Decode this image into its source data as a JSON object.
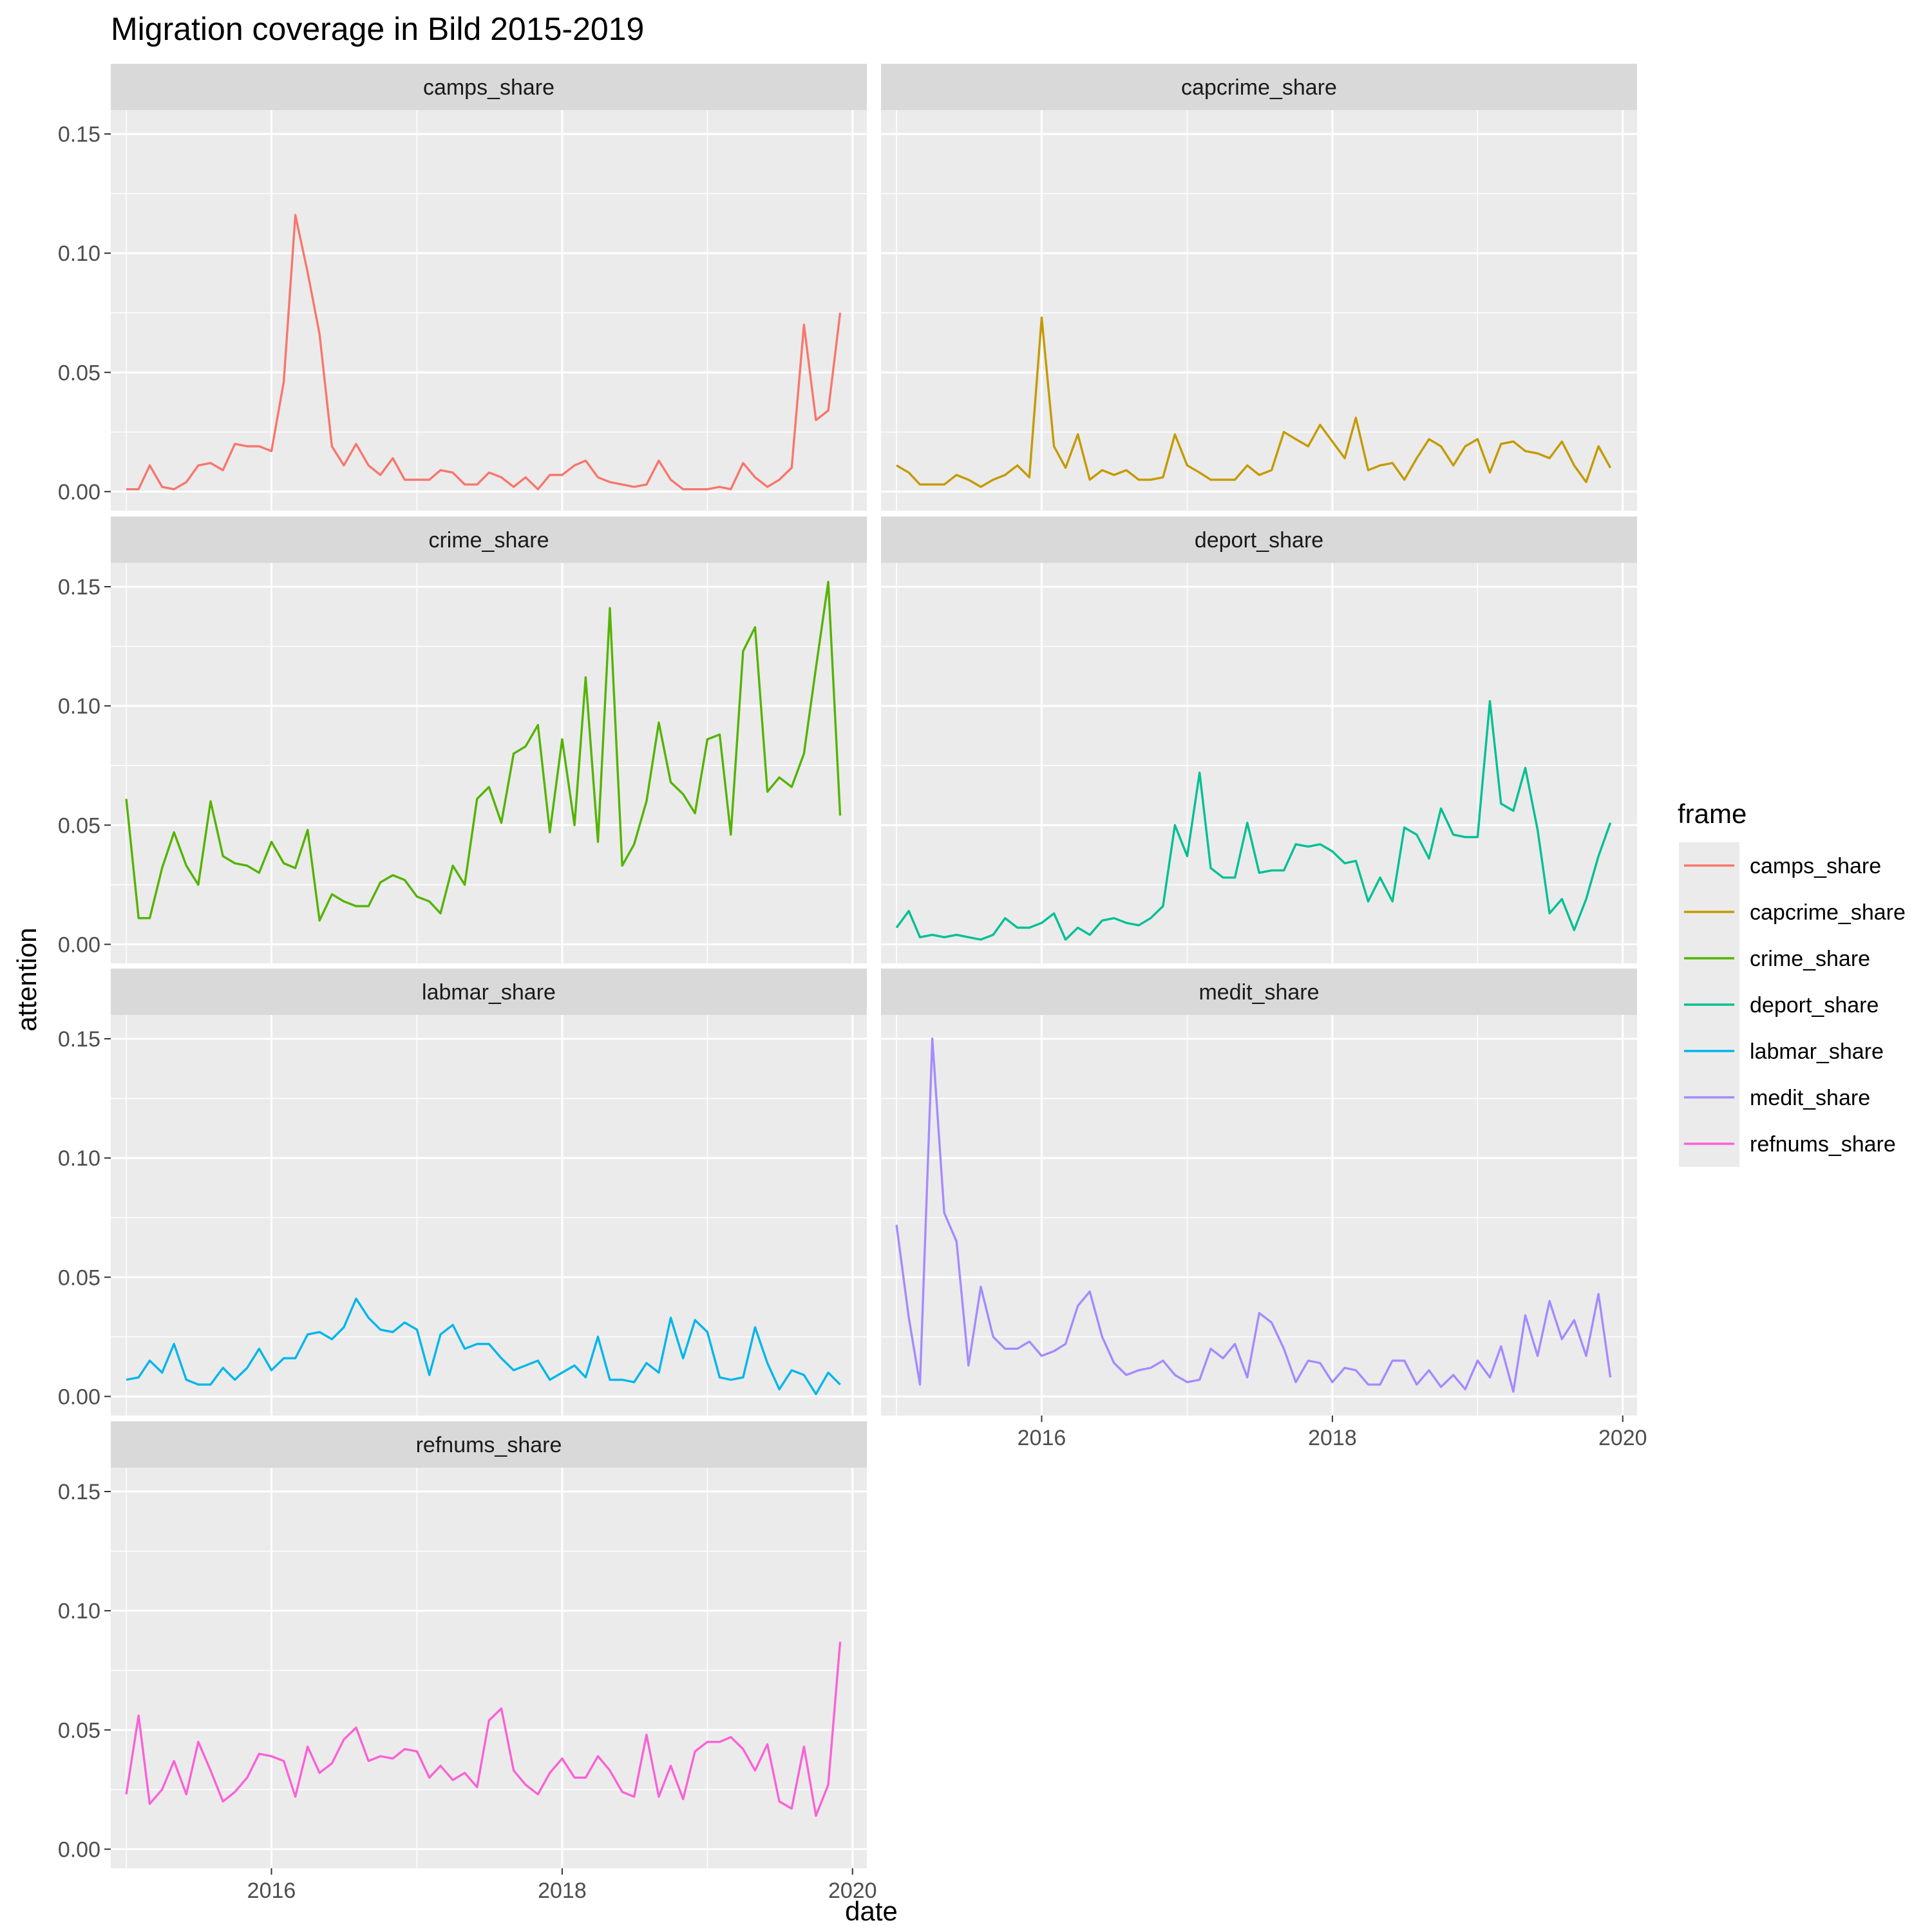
{
  "chart_data": {
    "type": "line",
    "title": "Migration coverage in Bild 2015-2019",
    "xlabel": "date",
    "ylabel": "attention",
    "legend_title": "frame",
    "legend_position": "right",
    "grid": true,
    "facet": "wrap by frame, 2 columns",
    "x_start": "2015-01",
    "x_step": "1 month",
    "xlim": [
      "2014-11-23",
      "2020-02-06"
    ],
    "x_ticks": [
      "2016",
      "2018",
      "2020"
    ],
    "ylim": [
      -0.008,
      0.16
    ],
    "y_ticks": [
      "0.00",
      "0.05",
      "0.10",
      "0.15"
    ],
    "series": [
      {
        "name": "camps_share",
        "color": "#F8766D",
        "values": [
          0.001,
          0.001,
          0.011,
          0.002,
          0.001,
          0.004,
          0.011,
          0.012,
          0.009,
          0.02,
          0.019,
          0.019,
          0.017,
          0.046,
          0.116,
          0.092,
          0.066,
          0.019,
          0.011,
          0.02,
          0.011,
          0.007,
          0.014,
          0.005,
          0.005,
          0.005,
          0.009,
          0.008,
          0.003,
          0.003,
          0.008,
          0.006,
          0.002,
          0.006,
          0.001,
          0.007,
          0.007,
          0.011,
          0.013,
          0.006,
          0.004,
          0.003,
          0.002,
          0.003,
          0.013,
          0.005,
          0.001,
          0.001,
          0.001,
          0.002,
          0.001,
          0.012,
          0.006,
          0.002,
          0.005,
          0.01,
          0.07,
          0.03,
          0.034,
          0.075
        ]
      },
      {
        "name": "capcrime_share",
        "color": "#C49A00",
        "values": [
          0.011,
          0.008,
          0.003,
          0.003,
          0.003,
          0.007,
          0.005,
          0.002,
          0.005,
          0.007,
          0.011,
          0.006,
          0.073,
          0.019,
          0.01,
          0.024,
          0.005,
          0.009,
          0.007,
          0.009,
          0.005,
          0.005,
          0.006,
          0.024,
          0.011,
          0.008,
          0.005,
          0.005,
          0.005,
          0.011,
          0.007,
          0.009,
          0.025,
          0.022,
          0.019,
          0.028,
          0.021,
          0.014,
          0.031,
          0.009,
          0.011,
          0.012,
          0.005,
          0.014,
          0.022,
          0.019,
          0.011,
          0.019,
          0.022,
          0.008,
          0.02,
          0.021,
          0.017,
          0.016,
          0.014,
          0.021,
          0.011,
          0.004,
          0.019,
          0.01
        ]
      },
      {
        "name": "crime_share",
        "color": "#53B400",
        "values": [
          0.061,
          0.011,
          0.011,
          0.032,
          0.047,
          0.033,
          0.025,
          0.06,
          0.037,
          0.034,
          0.033,
          0.03,
          0.043,
          0.034,
          0.032,
          0.048,
          0.01,
          0.021,
          0.018,
          0.016,
          0.016,
          0.026,
          0.029,
          0.027,
          0.02,
          0.018,
          0.013,
          0.033,
          0.025,
          0.061,
          0.066,
          0.051,
          0.08,
          0.083,
          0.092,
          0.047,
          0.086,
          0.05,
          0.112,
          0.043,
          0.141,
          0.033,
          0.042,
          0.06,
          0.093,
          0.068,
          0.063,
          0.055,
          0.086,
          0.088,
          0.046,
          0.123,
          0.133,
          0.064,
          0.07,
          0.066,
          0.08,
          0.116,
          0.152,
          0.054
        ]
      },
      {
        "name": "deport_share",
        "color": "#00C094",
        "values": [
          0.007,
          0.014,
          0.003,
          0.004,
          0.003,
          0.004,
          0.003,
          0.002,
          0.004,
          0.011,
          0.007,
          0.007,
          0.009,
          0.013,
          0.002,
          0.007,
          0.004,
          0.01,
          0.011,
          0.009,
          0.008,
          0.011,
          0.016,
          0.05,
          0.037,
          0.072,
          0.032,
          0.028,
          0.028,
          0.051,
          0.03,
          0.031,
          0.031,
          0.042,
          0.041,
          0.042,
          0.039,
          0.034,
          0.035,
          0.018,
          0.028,
          0.018,
          0.049,
          0.046,
          0.036,
          0.057,
          0.046,
          0.045,
          0.045,
          0.102,
          0.059,
          0.056,
          0.074,
          0.048,
          0.013,
          0.019,
          0.006,
          0.019,
          0.037,
          0.051
        ]
      },
      {
        "name": "labmar_share",
        "color": "#00B6EB",
        "values": [
          0.007,
          0.008,
          0.015,
          0.01,
          0.022,
          0.007,
          0.005,
          0.005,
          0.012,
          0.007,
          0.012,
          0.02,
          0.011,
          0.016,
          0.016,
          0.026,
          0.027,
          0.024,
          0.029,
          0.041,
          0.033,
          0.028,
          0.027,
          0.031,
          0.028,
          0.009,
          0.026,
          0.03,
          0.02,
          0.022,
          0.022,
          0.016,
          0.011,
          0.013,
          0.015,
          0.007,
          0.01,
          0.013,
          0.008,
          0.025,
          0.007,
          0.007,
          0.006,
          0.014,
          0.01,
          0.033,
          0.016,
          0.032,
          0.027,
          0.008,
          0.007,
          0.008,
          0.029,
          0.014,
          0.003,
          0.011,
          0.009,
          0.001,
          0.01,
          0.005
        ]
      },
      {
        "name": "medit_share",
        "color": "#A58AFF",
        "values": [
          0.072,
          0.033,
          0.005,
          0.15,
          0.077,
          0.065,
          0.013,
          0.046,
          0.025,
          0.02,
          0.02,
          0.023,
          0.017,
          0.019,
          0.022,
          0.038,
          0.044,
          0.025,
          0.014,
          0.009,
          0.011,
          0.012,
          0.015,
          0.009,
          0.006,
          0.007,
          0.02,
          0.016,
          0.022,
          0.008,
          0.035,
          0.031,
          0.02,
          0.006,
          0.015,
          0.014,
          0.006,
          0.012,
          0.011,
          0.005,
          0.005,
          0.015,
          0.015,
          0.005,
          0.011,
          0.004,
          0.009,
          0.003,
          0.015,
          0.008,
          0.021,
          0.002,
          0.034,
          0.017,
          0.04,
          0.024,
          0.032,
          0.017,
          0.043,
          0.008
        ]
      },
      {
        "name": "refnums_share",
        "color": "#FB61D7",
        "values": [
          0.023,
          0.056,
          0.019,
          0.025,
          0.037,
          0.023,
          0.045,
          0.033,
          0.02,
          0.024,
          0.03,
          0.04,
          0.039,
          0.037,
          0.022,
          0.043,
          0.032,
          0.036,
          0.046,
          0.051,
          0.037,
          0.039,
          0.038,
          0.042,
          0.041,
          0.03,
          0.035,
          0.029,
          0.032,
          0.026,
          0.054,
          0.059,
          0.033,
          0.027,
          0.023,
          0.032,
          0.038,
          0.03,
          0.03,
          0.039,
          0.033,
          0.024,
          0.022,
          0.048,
          0.022,
          0.035,
          0.021,
          0.041,
          0.045,
          0.045,
          0.047,
          0.042,
          0.033,
          0.044,
          0.02,
          0.017,
          0.043,
          0.014,
          0.027,
          0.087
        ]
      }
    ]
  }
}
